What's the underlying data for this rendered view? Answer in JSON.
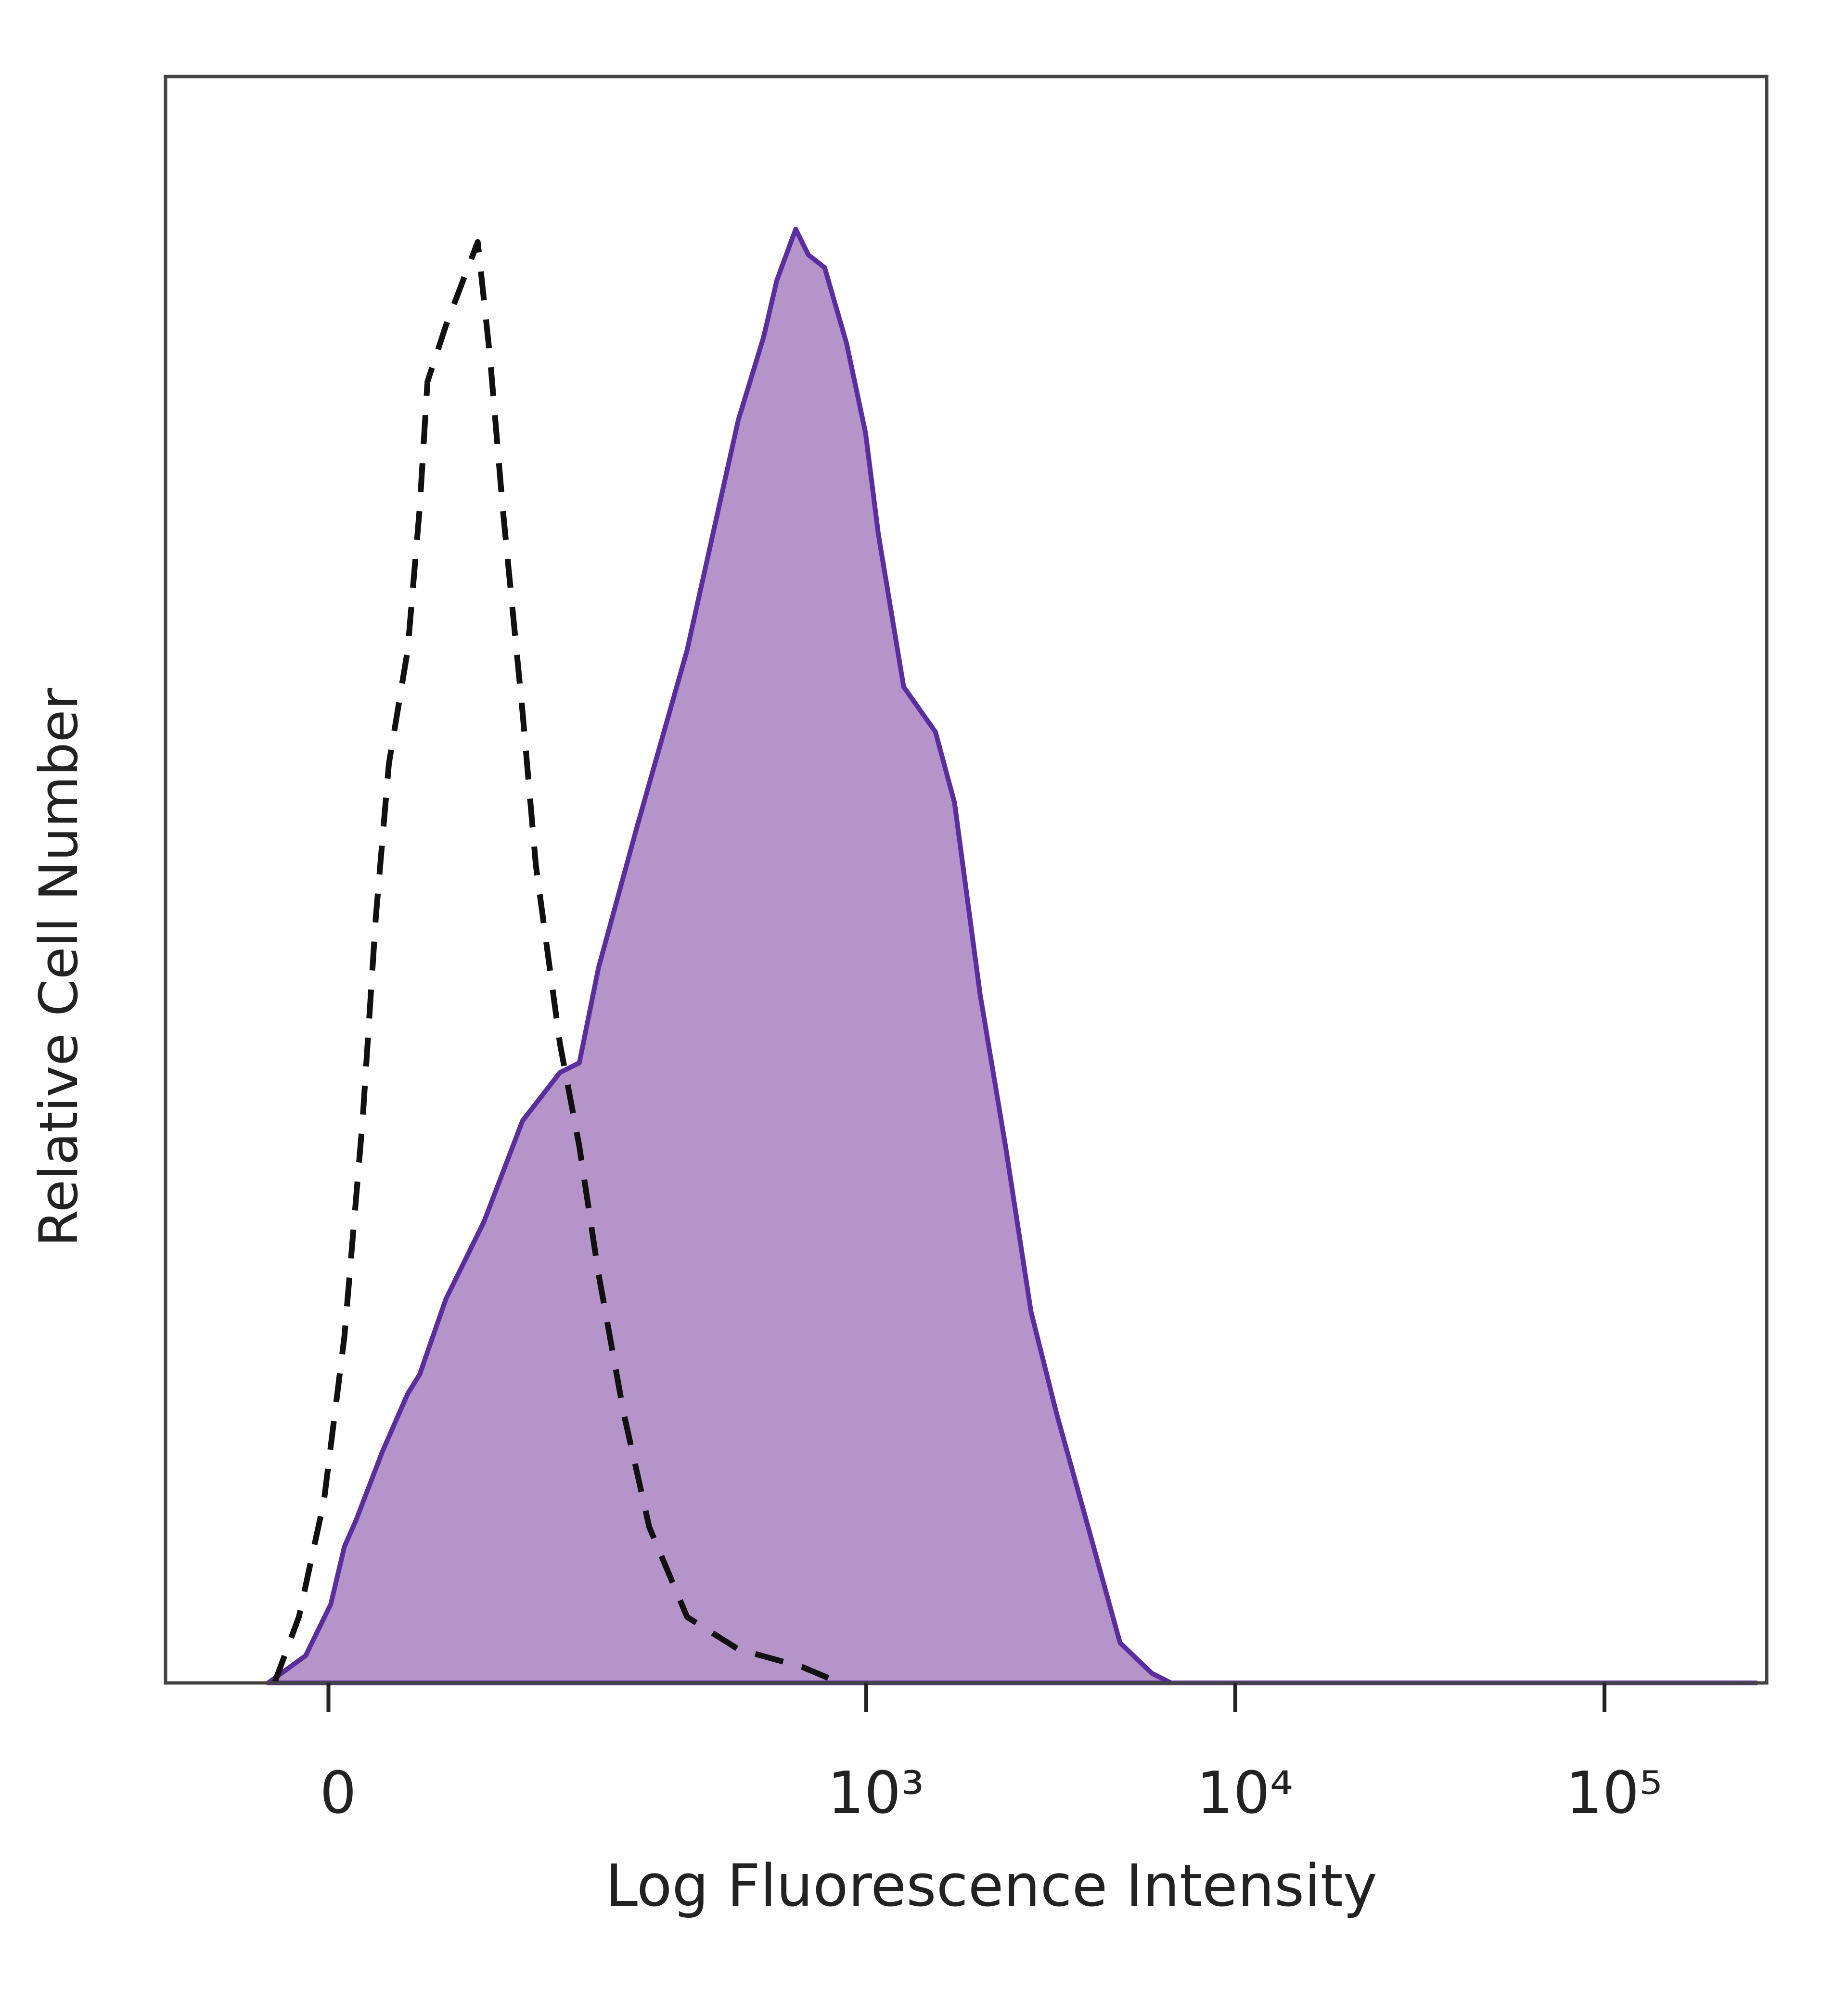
{
  "chart_data": {
    "type": "area",
    "xlabel": "Log Fluorescence Intensity",
    "ylabel": "Relative Cell Number",
    "xscale": "asinh",
    "xlim": [
      -84,
      275000
    ],
    "xticks": [
      0,
      {
        "value": 1000,
        "label": "10³"
      },
      {
        "value": 10000,
        "label": "10⁴"
      },
      {
        "value": 100000,
        "label": "10⁵"
      }
    ],
    "ylim": [
      0,
      100
    ],
    "series": [
      {
        "color": "#5b2d9e",
        "fill": "#b494c9",
        "dashed": false,
        "x": [
          -27,
          -10,
          1,
          7,
          12,
          24,
          36,
          42,
          56,
          79,
          107,
          140,
          160,
          182,
          234,
          324,
          413,
          448,
          526,
          571,
          643,
          696,
          771,
          884,
          996,
          1079,
          1264,
          1541,
          1736,
          2035,
          2387,
          2798,
          3279,
          3996,
          4876,
          5946,
          6700,
          9200,
          257600
        ],
        "values": [
          0,
          1.7,
          4.9,
          8.5,
          10.1,
          14.4,
          18.0,
          19.2,
          23.9,
          28.7,
          35.0,
          38.0,
          38.6,
          44.5,
          53.2,
          64.3,
          75.0,
          78.6,
          83.8,
          87.3,
          90.5,
          88.9,
          88.1,
          83.4,
          77.8,
          71.5,
          62.0,
          59.2,
          54.8,
          42.9,
          33.4,
          23.1,
          16.8,
          9.7,
          2.5,
          0.6,
          0,
          0,
          0
        ]
      },
      {
        "color": "#111111",
        "fill": "none",
        "dashed": true,
        "x": [
          -24,
          -13,
          -2,
          7,
          15,
          21,
          27,
          36,
          42,
          46,
          56,
          63,
          75,
          83,
          92,
          107,
          118,
          140,
          160,
          182,
          215,
          254,
          324,
          448,
          669,
          849
        ],
        "values": [
          0,
          4.1,
          11.3,
          21.6,
          35.0,
          47.7,
          57.2,
          64.3,
          73.1,
          81.0,
          84.5,
          86.5,
          89.7,
          82.6,
          73.1,
          60.4,
          50.9,
          39.8,
          33.4,
          25.5,
          16.8,
          9.7,
          4.1,
          2.1,
          1.0,
          0
        ]
      }
    ]
  }
}
